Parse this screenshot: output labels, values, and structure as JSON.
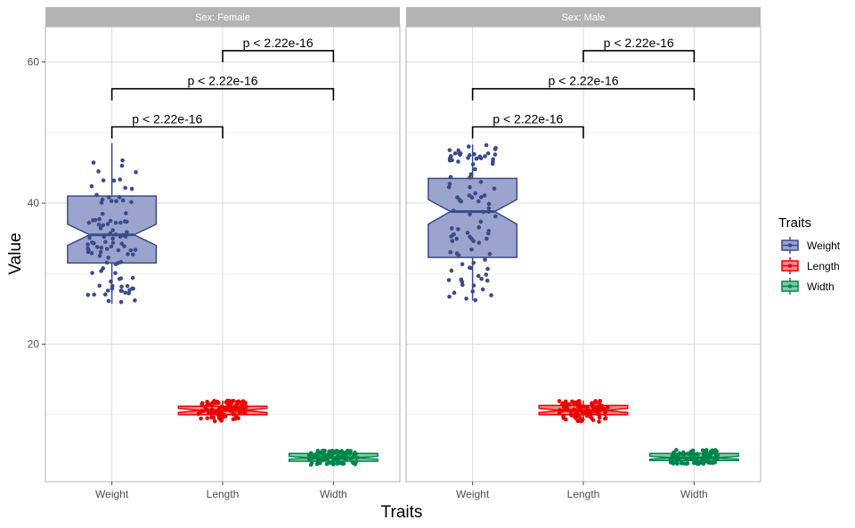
{
  "chart_data": {
    "type": "boxplot",
    "xlabel": "Traits",
    "ylabel": "Value",
    "categories": [
      "Weight",
      "Length",
      "Width"
    ],
    "ylim": [
      0.5,
      65
    ],
    "yticks": [
      20,
      40,
      60
    ],
    "grid": true,
    "legend": {
      "title": "Traits",
      "position": "right",
      "items": [
        {
          "name": "Weight",
          "color": "#3b4a8c",
          "fill": "#9aa4cc"
        },
        {
          "name": "Length",
          "color": "#ee0000",
          "fill": "#f48a8a"
        },
        {
          "name": "Width",
          "color": "#00854a",
          "fill": "#80c9a6"
        }
      ]
    },
    "panels": [
      {
        "label": "Sex: Female",
        "boxes": [
          {
            "category": "Weight",
            "q1": 31.5,
            "median": 35.5,
            "q3": 41,
            "min": 25.7,
            "max": 48.5,
            "notch": [
              34,
              37
            ]
          },
          {
            "category": "Length",
            "q1": 10,
            "median": 10.6,
            "q3": 11.2,
            "min": 9,
            "max": 12,
            "notch": [
              10.3,
              10.9
            ]
          },
          {
            "category": "Width",
            "q1": 3.4,
            "median": 3.9,
            "q3": 4.5,
            "min": 2.9,
            "max": 4.9,
            "notch": [
              3.7,
              4.1
            ]
          }
        ],
        "comparisons": [
          {
            "from": "Weight",
            "to": "Length",
            "y": 50.8,
            "label": "p < 2.22e-16"
          },
          {
            "from": "Weight",
            "to": "Width",
            "y": 56.2,
            "label": "p < 2.22e-16"
          },
          {
            "from": "Length",
            "to": "Width",
            "y": 61.6,
            "label": "p < 2.22e-16"
          }
        ]
      },
      {
        "label": "Sex: Male",
        "boxes": [
          {
            "category": "Weight",
            "q1": 32.3,
            "median": 38.8,
            "q3": 43.5,
            "min": 26.2,
            "max": 48.3,
            "notch": [
              37,
              40.5
            ]
          },
          {
            "category": "Length",
            "q1": 10,
            "median": 10.6,
            "q3": 11.3,
            "min": 9,
            "max": 12,
            "notch": [
              10.3,
              10.9
            ]
          },
          {
            "category": "Width",
            "q1": 3.5,
            "median": 3.9,
            "q3": 4.5,
            "min": 3,
            "max": 5,
            "notch": [
              3.7,
              4.1
            ]
          }
        ],
        "comparisons": [
          {
            "from": "Weight",
            "to": "Length",
            "y": 50.8,
            "label": "p < 2.22e-16"
          },
          {
            "from": "Weight",
            "to": "Width",
            "y": 56.2,
            "label": "p < 2.22e-16"
          },
          {
            "from": "Length",
            "to": "Width",
            "y": 61.6,
            "label": "p < 2.22e-16"
          }
        ]
      }
    ]
  }
}
